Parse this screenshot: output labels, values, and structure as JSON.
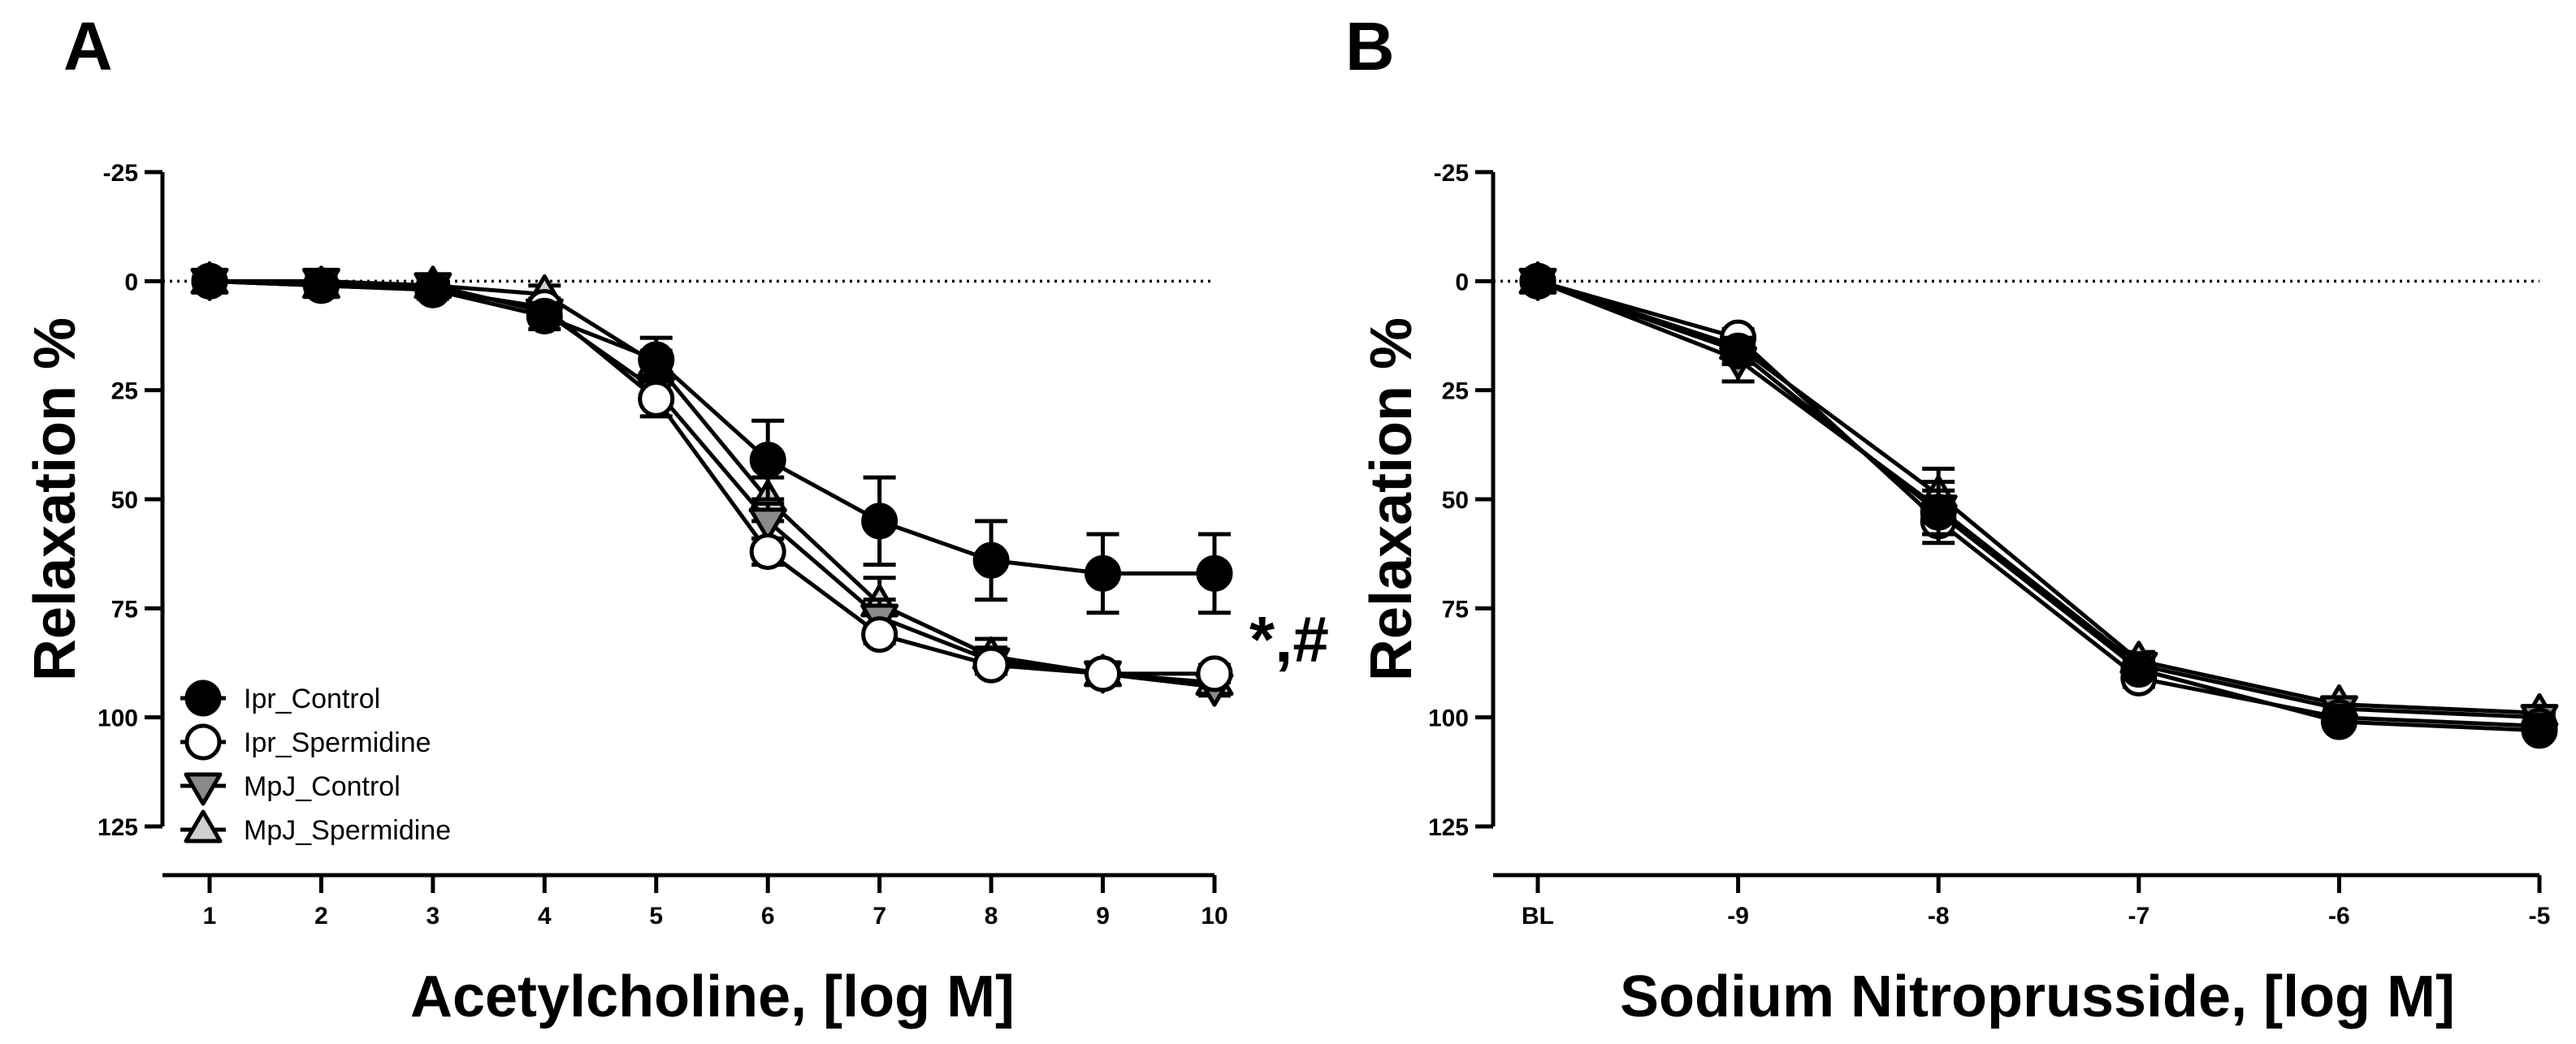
{
  "chart_data": [
    {
      "panel": "A",
      "type": "line",
      "xlabel": "Acetylcholine, [log M]",
      "ylabel": "Relaxation %",
      "x_ticks": [
        "1",
        "2",
        "3",
        "4",
        "5",
        "6",
        "7",
        "8",
        "9",
        "10"
      ],
      "y_ticks": [
        "-25",
        "0",
        "25",
        "50",
        "75",
        "100",
        "125"
      ],
      "ylim": [
        -25,
        125
      ],
      "y_inverted": true,
      "reference_line": 0,
      "annotation": "*,#",
      "legend": [
        "Ipr_Control",
        "Ipr_Spermidine",
        "MpJ_Control",
        "MpJ_Spermidine"
      ],
      "legend_position": "bottom-left",
      "x": [
        1,
        2,
        3,
        4,
        5,
        6,
        7,
        8,
        9,
        10
      ],
      "series": [
        {
          "name": "Ipr_Control",
          "marker": "circle-filled",
          "values": [
            0,
            1,
            2,
            8,
            18,
            41,
            55,
            64,
            67,
            67
          ],
          "errors": [
            2,
            2,
            2,
            3,
            5,
            9,
            10,
            9,
            9,
            9
          ]
        },
        {
          "name": "Ipr_Spermidine",
          "marker": "circle-open",
          "values": [
            0,
            1,
            2,
            6,
            27,
            62,
            81,
            88,
            90,
            90
          ],
          "errors": [
            2,
            2,
            2,
            2,
            4,
            3,
            2,
            2,
            2,
            2
          ]
        },
        {
          "name": "MpJ_Control",
          "marker": "triangle-down",
          "values": [
            0,
            0,
            1,
            7,
            25,
            55,
            77,
            87,
            90,
            93
          ],
          "errors": [
            2,
            2,
            2,
            2,
            3,
            4,
            4,
            3,
            2,
            2
          ]
        },
        {
          "name": "MpJ_Spermidine",
          "marker": "triangle-up",
          "values": [
            0,
            1,
            1,
            3,
            19,
            50,
            74,
            86,
            90,
            92
          ],
          "errors": [
            2,
            2,
            2,
            2,
            3,
            5,
            6,
            4,
            2,
            2
          ]
        }
      ]
    },
    {
      "panel": "B",
      "type": "line",
      "xlabel": "Sodium Nitroprusside, [log M]",
      "ylabel": "Relaxation %",
      "x_ticks": [
        "BL",
        "-9",
        "-8",
        "-7",
        "-6",
        "-5"
      ],
      "y_ticks": [
        "-25",
        "0",
        "25",
        "50",
        "75",
        "100",
        "125"
      ],
      "ylim": [
        -25,
        125
      ],
      "y_inverted": true,
      "reference_line": 0,
      "x": [
        0,
        1,
        2,
        3,
        4,
        5
      ],
      "series": [
        {
          "name": "Ipr_Control",
          "marker": "circle-filled",
          "values": [
            0,
            16,
            53,
            89,
            101,
            103
          ],
          "errors": [
            1,
            3,
            5,
            2,
            1,
            1
          ]
        },
        {
          "name": "Ipr_Spermidine",
          "marker": "circle-open",
          "values": [
            0,
            13,
            55,
            91,
            100,
            102
          ],
          "errors": [
            1,
            2,
            5,
            2,
            1,
            1
          ]
        },
        {
          "name": "MpJ_Control",
          "marker": "triangle-down",
          "values": [
            0,
            18,
            52,
            88,
            98,
            100
          ],
          "errors": [
            1,
            5,
            6,
            2,
            1,
            1
          ]
        },
        {
          "name": "MpJ_Spermidine",
          "marker": "triangle-up",
          "values": [
            0,
            15,
            49,
            87,
            97,
            99
          ],
          "errors": [
            1,
            3,
            6,
            2,
            1,
            1
          ]
        }
      ]
    }
  ],
  "colors": {
    "Ipr_Control": "#000000",
    "Ipr_Spermidine": "#ffffff",
    "MpJ_Control": "#8a8a8a",
    "MpJ_Spermidine": "#cfcfcf",
    "stroke": "#000000"
  }
}
